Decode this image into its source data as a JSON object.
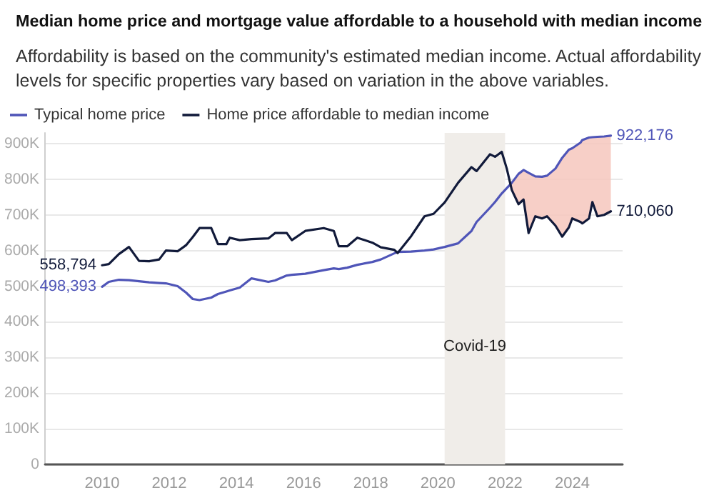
{
  "chart_data": {
    "type": "line",
    "title": "Median home price and mortgage value affordable to a household with median income",
    "subtitle": "Affordability is based on the community's estimated median income. Actual affordability levels for specific properties vary based on variation in the above variables.",
    "x": [
      2010.0,
      2010.2,
      2010.5,
      2010.8,
      2011.1,
      2011.4,
      2011.7,
      2011.9,
      2012.25,
      2012.5,
      2012.7,
      2012.9,
      2013.25,
      2013.45,
      2013.7,
      2013.8,
      2014.1,
      2014.45,
      2014.95,
      2015.15,
      2015.5,
      2015.65,
      2016.05,
      2016.6,
      2016.9,
      2017.05,
      2017.3,
      2017.6,
      2018.05,
      2018.3,
      2018.7,
      2018.8,
      2019.2,
      2019.6,
      2019.87,
      2020.2,
      2020.6,
      2021.0,
      2021.15,
      2021.55,
      2021.7,
      2021.9,
      2022.05,
      2022.2,
      2022.4,
      2022.55,
      2022.7,
      2022.9,
      2023.1,
      2023.25,
      2023.5,
      2023.7,
      2023.9,
      2024.0,
      2024.25,
      2024.3,
      2024.5,
      2024.6,
      2024.75,
      2024.95,
      2025.15
    ],
    "series": [
      {
        "name": "Typical home price",
        "color": "#4f55b8",
        "values": [
          498393,
          512000,
          518000,
          517000,
          514000,
          511000,
          509000,
          508000,
          500000,
          482000,
          464000,
          461000,
          468000,
          478000,
          485000,
          488000,
          496000,
          522000,
          512000,
          516000,
          530000,
          532000,
          535000,
          545000,
          550000,
          548000,
          552000,
          560000,
          568000,
          575000,
          592000,
          596000,
          597000,
          600000,
          603000,
          610000,
          620000,
          655000,
          680000,
          720000,
          736000,
          760000,
          775000,
          790000,
          815000,
          826000,
          818000,
          808000,
          807000,
          810000,
          830000,
          860000,
          883000,
          887000,
          903000,
          910000,
          917000,
          918000,
          919000,
          920000,
          922176
        ],
        "value_labels": [
          "498,393",
          null,
          null,
          null,
          null,
          null,
          null,
          null,
          null,
          null,
          null,
          null,
          null,
          null,
          null,
          null,
          null,
          null,
          null,
          null,
          null,
          null,
          null,
          null,
          null,
          null,
          null,
          null,
          null,
          null,
          null,
          null,
          null,
          null,
          null,
          null,
          null,
          null,
          null,
          null,
          null,
          null,
          null,
          null,
          null,
          null,
          null,
          null,
          null,
          null,
          null,
          null,
          null,
          null,
          null,
          null,
          null,
          null,
          null,
          null,
          "922,176"
        ],
        "lower": [
          null,
          null,
          null,
          null,
          null,
          null,
          null,
          null,
          null,
          null,
          null,
          null,
          null,
          null,
          null,
          null,
          null,
          null,
          null,
          null,
          null,
          null,
          null,
          null,
          null,
          null,
          null,
          null,
          null,
          null,
          null,
          null,
          null,
          null,
          null,
          null,
          null,
          null,
          null,
          null,
          null,
          null,
          null,
          770000,
          730000,
          743000,
          649000,
          696000,
          690000,
          696000,
          670000,
          639000,
          665000,
          690000,
          680000,
          676000,
          690000,
          736000,
          696000,
          700000,
          710060
        ],
        "upper": [
          null,
          null,
          null,
          null,
          null,
          null,
          null,
          null,
          null,
          null,
          null,
          null,
          null,
          null,
          null,
          null,
          null,
          null,
          null,
          null,
          null,
          null,
          null,
          null,
          null,
          null,
          null,
          null,
          null,
          null,
          null,
          null,
          null,
          null,
          null,
          null,
          null,
          null,
          null,
          null,
          null,
          null,
          null,
          790000,
          815000,
          826000,
          818000,
          808000,
          807000,
          810000,
          830000,
          860000,
          883000,
          887000,
          903000,
          910000,
          917000,
          918000,
          919000,
          920000,
          922176
        ]
      },
      {
        "name": "Home price affordable to median income",
        "color": "#111a3a",
        "values": [
          558794,
          562000,
          590000,
          610000,
          571000,
          570000,
          575000,
          600000,
          598000,
          615000,
          638000,
          663000,
          663000,
          618000,
          618000,
          636000,
          629000,
          632000,
          634000,
          649000,
          649000,
          629000,
          655000,
          663000,
          655000,
          612000,
          612000,
          636000,
          622000,
          609000,
          602000,
          593000,
          640000,
          696000,
          703000,
          735000,
          790000,
          834000,
          823000,
          870000,
          863000,
          877000,
          830000,
          770000,
          730000,
          743000,
          649000,
          696000,
          690000,
          696000,
          670000,
          639000,
          665000,
          690000,
          680000,
          676000,
          690000,
          736000,
          696000,
          700000,
          710060
        ],
        "value_labels": [
          "558,794",
          null,
          null,
          null,
          null,
          null,
          null,
          null,
          null,
          null,
          null,
          null,
          null,
          null,
          null,
          null,
          null,
          null,
          null,
          null,
          null,
          null,
          null,
          null,
          null,
          null,
          null,
          null,
          null,
          null,
          null,
          null,
          null,
          null,
          null,
          null,
          null,
          null,
          null,
          null,
          null,
          null,
          null,
          null,
          null,
          null,
          null,
          null,
          null,
          null,
          null,
          null,
          null,
          null,
          null,
          null,
          null,
          null,
          null,
          null,
          "710,060"
        ]
      }
    ],
    "xlim": [
      2008.3,
      2025.5
    ],
    "xticks": [
      2010,
      2012,
      2014,
      2016,
      2018,
      2020,
      2022,
      2024
    ],
    "ylim": [
      0,
      930000
    ],
    "yticks": [
      {
        "value": 0,
        "label": "0"
      },
      {
        "value": 100000,
        "label": "100K"
      },
      {
        "value": 200000,
        "label": "200K"
      },
      {
        "value": 300000,
        "label": "300K"
      },
      {
        "value": 400000,
        "label": "400K"
      },
      {
        "value": 500000,
        "label": "500K"
      },
      {
        "value": 600000,
        "label": "600K"
      },
      {
        "value": 700000,
        "label": "700K"
      },
      {
        "value": 800000,
        "label": "800K"
      },
      {
        "value": 900000,
        "label": "900K"
      }
    ],
    "bands": [
      {
        "axis": "x",
        "from": 2020.2,
        "to": 2022.0,
        "label": "Covid-19",
        "color": "#f0ede9"
      }
    ],
    "grid": "y",
    "legend": "top left",
    "marker": "none",
    "line_style": "solid"
  }
}
